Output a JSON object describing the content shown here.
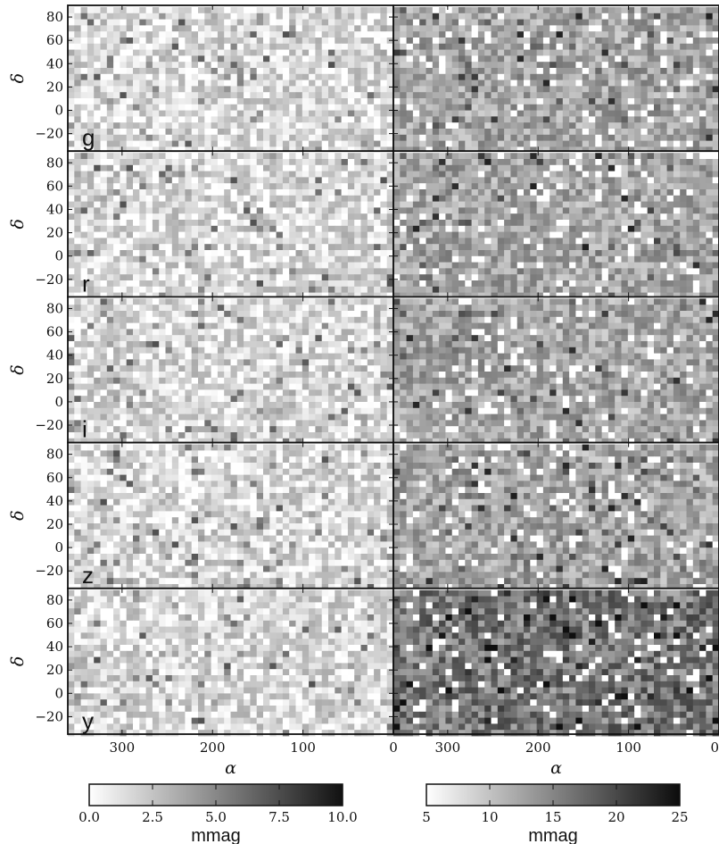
{
  "chart_data": [
    {
      "type": "heatmap",
      "description_column": "left",
      "xlabel": "α",
      "ylabel": "δ",
      "xlim": [
        360,
        0
      ],
      "ylim": [
        -35,
        90
      ],
      "x_ticks": [
        "300",
        "200",
        "100",
        "0"
      ],
      "y_ticks": [
        "80",
        "60",
        "40",
        "20",
        "0",
        "−20"
      ],
      "panels": [
        {
          "band": "g",
          "texture": "light"
        },
        {
          "band": "r",
          "texture": "light"
        },
        {
          "band": "i",
          "texture": "light"
        },
        {
          "band": "z",
          "texture": "light"
        },
        {
          "band": "y",
          "texture": "light"
        }
      ],
      "colorbar": {
        "ticks": [
          "0.0",
          "2.5",
          "5.0",
          "7.5",
          "10.0"
        ],
        "min": 0,
        "max": 10,
        "label": "mmag"
      }
    },
    {
      "type": "heatmap",
      "description_column": "right",
      "xlabel": "α",
      "xlim": [
        360,
        0
      ],
      "ylim": [
        -35,
        90
      ],
      "x_ticks": [
        "300",
        "200",
        "100",
        "0"
      ],
      "panels": [
        {
          "band": "g",
          "texture": "medium"
        },
        {
          "band": "r",
          "texture": "medium"
        },
        {
          "band": "i",
          "texture": "medium"
        },
        {
          "band": "z",
          "texture": "medium"
        },
        {
          "band": "y",
          "texture": "dark"
        }
      ],
      "colorbar": {
        "ticks": [
          "5",
          "10",
          "15",
          "20",
          "25"
        ],
        "min": 5,
        "max": 25,
        "label": "mmag"
      }
    }
  ]
}
